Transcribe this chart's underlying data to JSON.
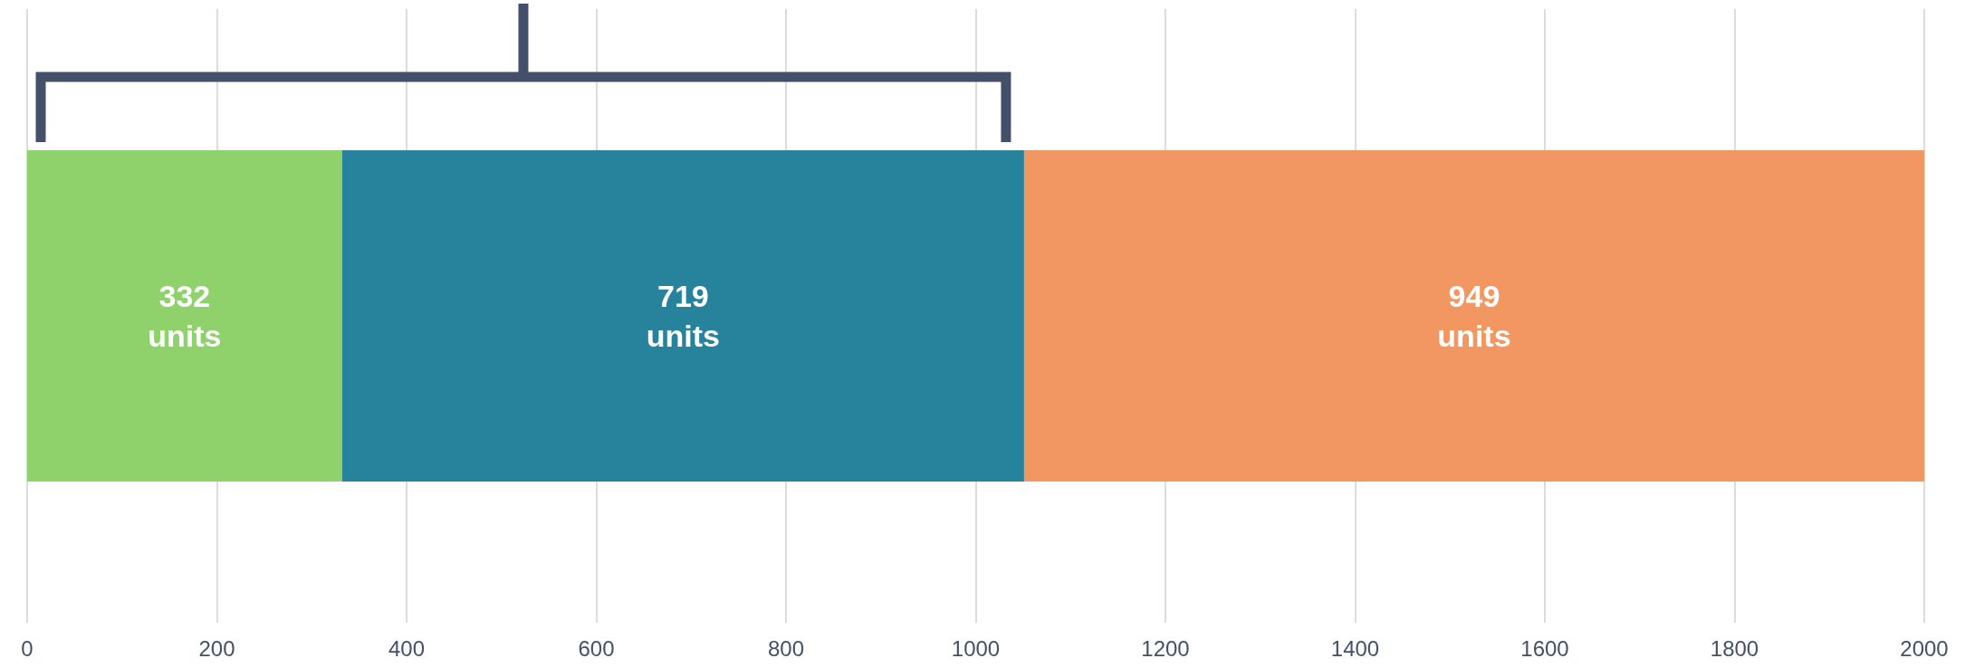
{
  "chart_data": {
    "type": "bar",
    "orientation": "horizontal",
    "stacked": true,
    "categories": [
      null
    ],
    "series": [
      {
        "color": "#8fd16a",
        "values": [
          332
        ],
        "value_labels": [
          "332\nunits"
        ]
      },
      {
        "color": "#27839c",
        "values": [
          719
        ],
        "value_labels": [
          "719\nunits"
        ]
      },
      {
        "color": "#f39762",
        "values": [
          949
        ],
        "value_labels": [
          "949\nunits"
        ]
      }
    ],
    "xlim": [
      0,
      2000
    ],
    "xticks": [
      0,
      200,
      400,
      600,
      800,
      1000,
      1200,
      1400,
      1600,
      1800,
      2000
    ],
    "grid": "x"
  }
}
